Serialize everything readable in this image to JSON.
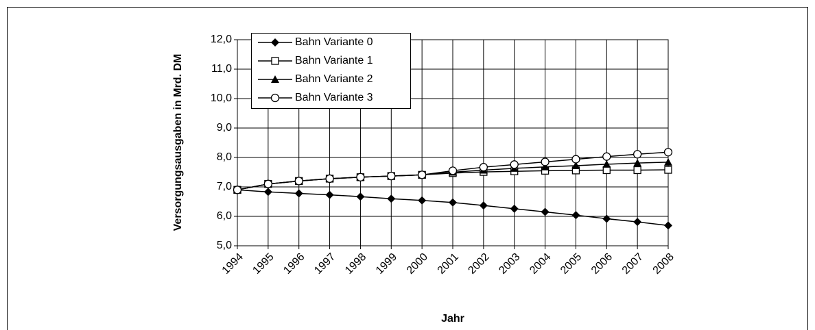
{
  "chart_data": {
    "type": "line",
    "y_label": "Versorgungsausgaben in Mrd. DM",
    "x_label": "Jahr",
    "categories": [
      "1994",
      "1995",
      "1996",
      "1997",
      "1998",
      "1999",
      "2000",
      "2001",
      "2002",
      "2003",
      "2004",
      "2005",
      "2006",
      "2007",
      "2008"
    ],
    "series": [
      {
        "name": "Bahn Variante 0",
        "color": "#000000",
        "marker": "diamond",
        "values": [
          6.9,
          6.83,
          6.78,
          6.73,
          6.67,
          6.6,
          6.54,
          6.47,
          6.37,
          6.26,
          6.15,
          6.04,
          5.92,
          5.81,
          5.69
        ]
      },
      {
        "name": "Bahn Variante 1",
        "color": "#000000",
        "marker": "square",
        "values": [
          6.9,
          7.1,
          7.2,
          7.28,
          7.33,
          7.37,
          7.41,
          7.47,
          7.51,
          7.53,
          7.55,
          7.56,
          7.57,
          7.57,
          7.58
        ]
      },
      {
        "name": "Bahn Variante 2",
        "color": "#000000",
        "marker": "triangle",
        "values": [
          6.9,
          7.1,
          7.2,
          7.28,
          7.33,
          7.37,
          7.41,
          7.5,
          7.57,
          7.63,
          7.68,
          7.72,
          7.77,
          7.81,
          7.84
        ]
      },
      {
        "name": "Bahn Variante 3",
        "color": "#000000",
        "marker": "circle",
        "values": [
          6.9,
          7.1,
          7.2,
          7.28,
          7.33,
          7.37,
          7.41,
          7.55,
          7.67,
          7.76,
          7.85,
          7.94,
          8.03,
          8.11,
          8.18
        ]
      }
    ],
    "ylim": [
      5,
      12
    ],
    "yticks": [
      {
        "value": 5,
        "label": "5,0"
      },
      {
        "value": 6,
        "label": "6,0"
      },
      {
        "value": 7,
        "label": "7,0"
      },
      {
        "value": 8,
        "label": "8,0"
      },
      {
        "value": 9,
        "label": "9,0"
      },
      {
        "value": 10,
        "label": "10,0"
      },
      {
        "value": 11,
        "label": "11,0"
      },
      {
        "value": 12,
        "label": "12,0"
      }
    ],
    "grid": true,
    "legend": "top-left"
  }
}
